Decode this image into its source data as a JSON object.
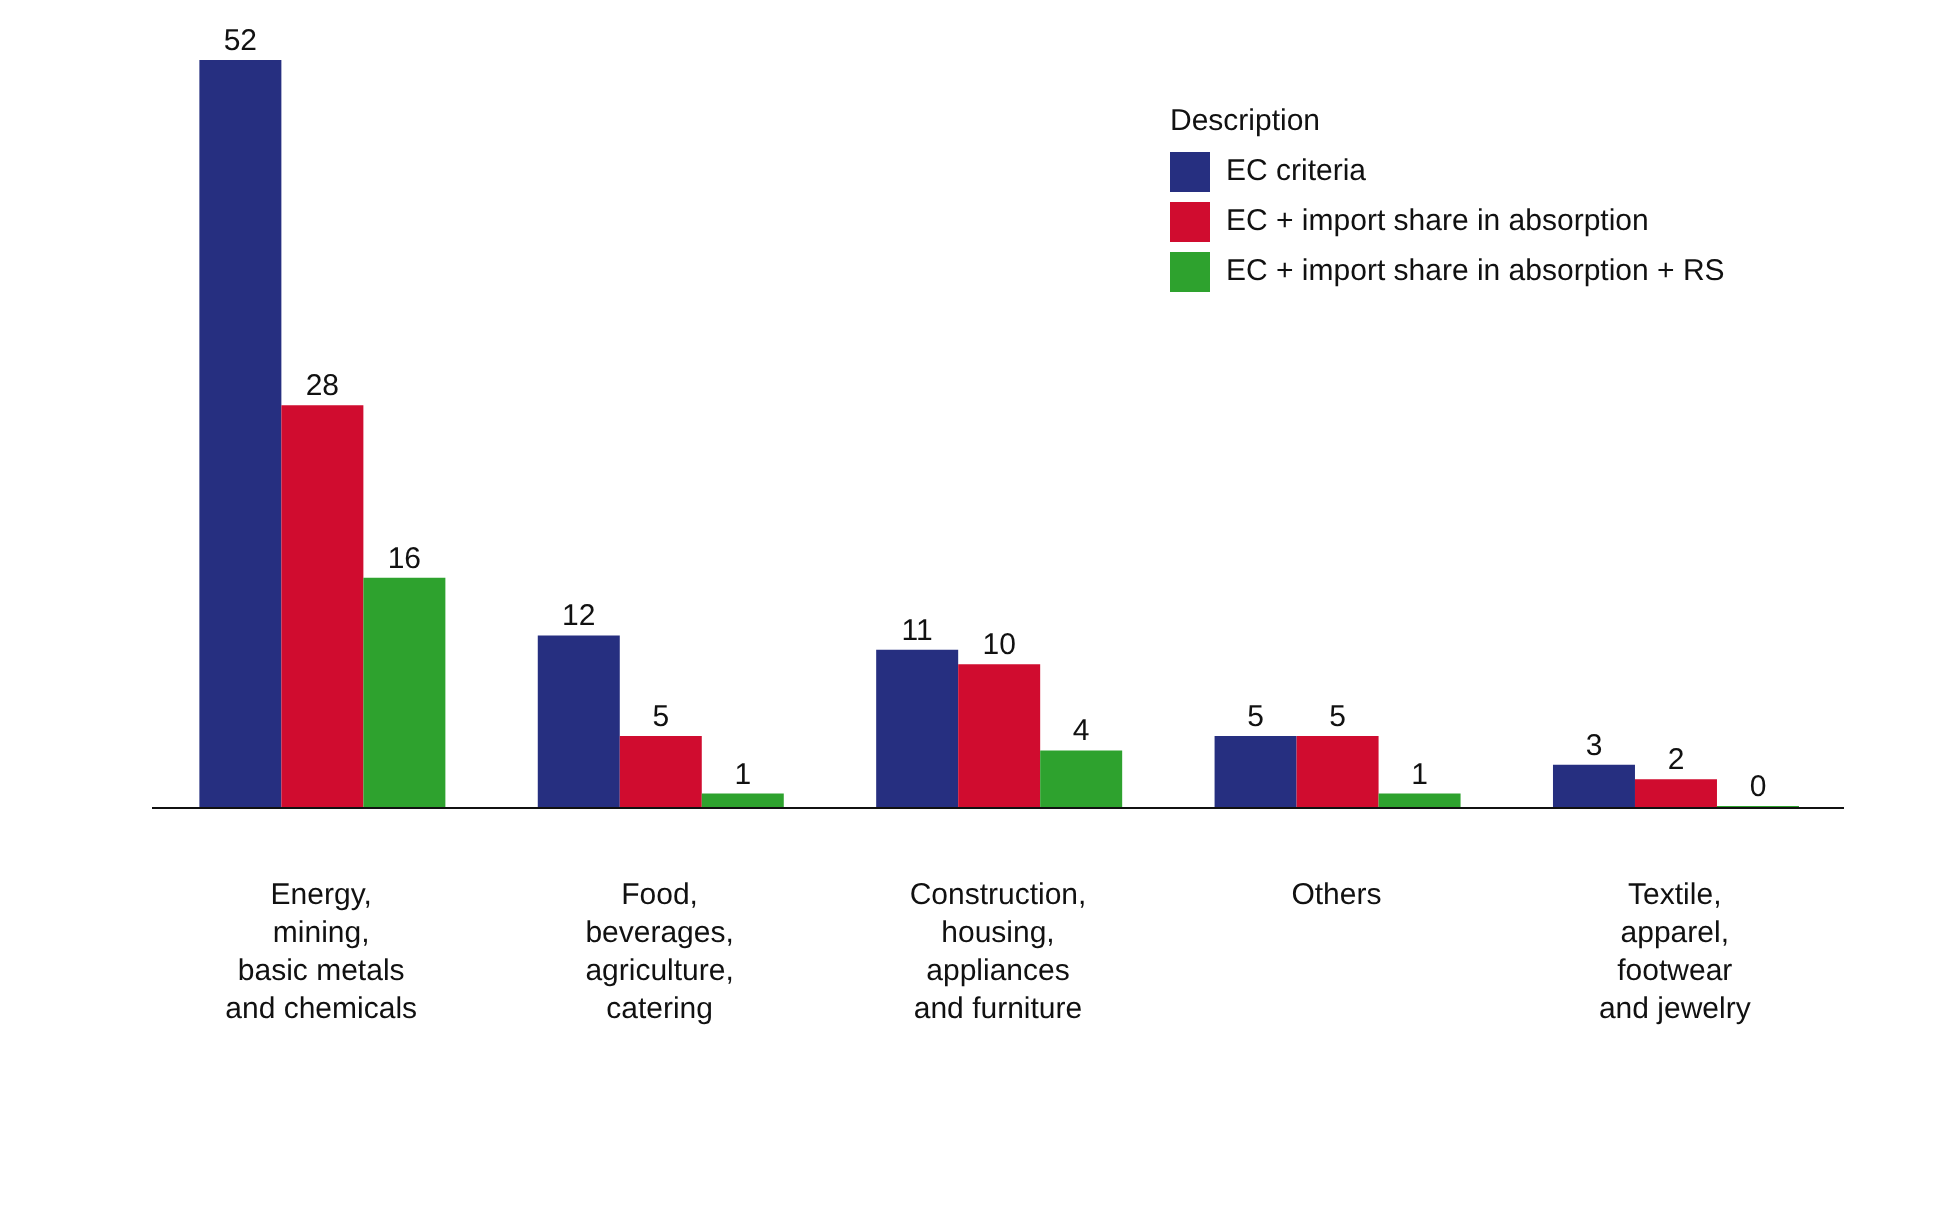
{
  "chart_data": {
    "type": "bar",
    "categories": [
      "Energy,\nmining,\nbasic metals\nand chemicals",
      "Food,\nbeverages,\nagriculture,\ncatering",
      "Construction,\nhousing,\nappliances\nand furniture",
      "Others",
      "Textile,\napparel,\nfootwear\nand jewelry"
    ],
    "series": [
      {
        "name": "EC criteria",
        "color": "#262f80",
        "values": [
          52,
          12,
          11,
          5,
          3
        ]
      },
      {
        "name": "EC + import share in absorption",
        "color": "#d00c2f",
        "values": [
          28,
          5,
          10,
          5,
          2
        ]
      },
      {
        "name": "EC + import share in absorption + RS",
        "color": "#2ea22e",
        "values": [
          16,
          1,
          4,
          1,
          0
        ]
      }
    ],
    "legend_title": "Description",
    "legend": "top right",
    "data_labels": true,
    "grid": false
  }
}
